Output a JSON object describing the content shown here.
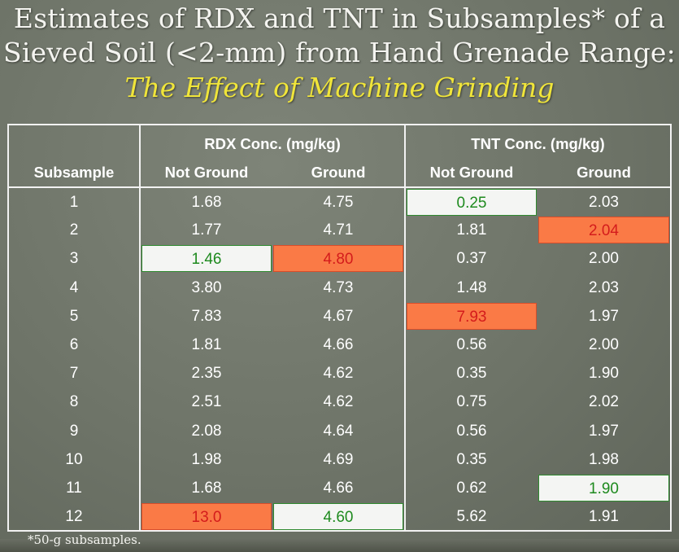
{
  "title": {
    "line1": "Estimates of RDX and TNT in Subsamples* of a",
    "line2": "Sieved Soil (<2-mm) from  Hand Grenade Range:",
    "line3": "The Effect of Machine Grinding"
  },
  "table": {
    "group_headers": [
      "RDX Conc. (mg/kg)",
      "TNT Conc. (mg/kg)"
    ],
    "columns": [
      "Subsample",
      "Not Ground",
      "Ground",
      "Not Ground",
      "Ground"
    ],
    "rows": [
      [
        "1",
        "1.68",
        "4.75",
        "0.25",
        "2.03"
      ],
      [
        "2",
        "1.77",
        "4.71",
        "1.81",
        "2.04"
      ],
      [
        "3",
        "1.46",
        "4.80",
        "0.37",
        "2.00"
      ],
      [
        "4",
        "3.80",
        "4.73",
        "1.48",
        "2.03"
      ],
      [
        "5",
        "7.83",
        "4.67",
        "7.93",
        "1.97"
      ],
      [
        "6",
        "1.81",
        "4.66",
        "0.56",
        "2.00"
      ],
      [
        "7",
        "2.35",
        "4.62",
        "0.35",
        "1.90"
      ],
      [
        "8",
        "2.51",
        "4.62",
        "0.75",
        "2.02"
      ],
      [
        "9",
        "2.08",
        "4.64",
        "0.56",
        "1.97"
      ],
      [
        "10",
        "1.98",
        "4.69",
        "0.35",
        "1.98"
      ],
      [
        "11",
        "1.68",
        "4.66",
        "0.62",
        "1.90"
      ],
      [
        "12",
        "13.0",
        "4.60",
        "5.62",
        "1.91"
      ]
    ],
    "min_cells": [
      [
        2,
        1
      ],
      [
        11,
        2
      ],
      [
        0,
        3
      ],
      [
        10,
        4
      ]
    ],
    "max_cells": [
      [
        11,
        1
      ],
      [
        2,
        2
      ],
      [
        4,
        3
      ],
      [
        1,
        4
      ]
    ]
  },
  "footnote": "*50-g subsamples.",
  "colors": {
    "min_highlight_bg": "#f4f5f3",
    "min_highlight_text": "#1e8a1e",
    "max_highlight_bg": "#fa7a46",
    "max_highlight_text": "#d41c1c"
  }
}
